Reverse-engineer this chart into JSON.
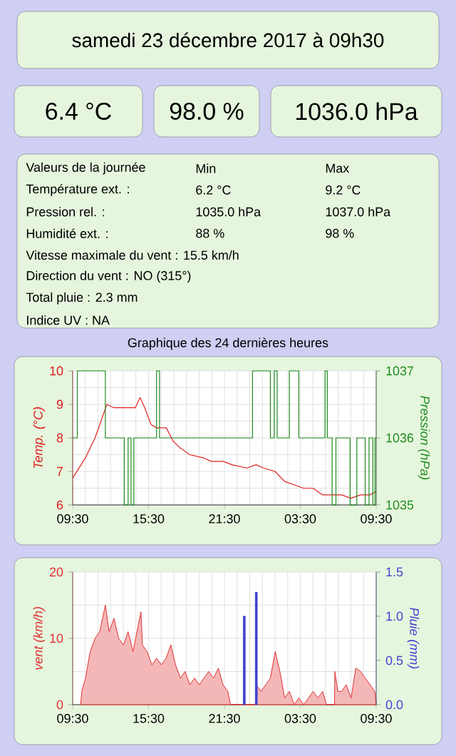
{
  "chart_data": [
    {
      "type": "other",
      "title": "samedi 23 décembre 2017 à 09h30",
      "annotations": [
        "6.4 °C",
        "98.0 %",
        "1036.0 hPa",
        "Valeurs de la journée",
        "Min",
        "Max",
        "Température ext. :",
        "6.2 °C",
        "9.2 °C",
        "Pression rel. :",
        "1035.0 hPa",
        "1037.0 hPa",
        "Humidité ext. :",
        "88 %",
        "98 %",
        "Vitesse maximale du vent : 15.5 km/h",
        "Direction du vent : NO (315°)",
        "Total pluie : 2.3 mm",
        "Indice UV : NA"
      ]
    },
    {
      "type": "line",
      "title": "Graphique des 24 dernières heures",
      "ylabel": "Temp. (°C)",
      "y2label": "Pression (hPa)",
      "grid": true,
      "xlim": [
        "2017-12-22T09:30",
        "2017-12-23T09:30"
      ],
      "xticks": [
        {
          "value": "2017-12-22T09:30",
          "label": "09:30"
        },
        {
          "value": "2017-12-22T15:30",
          "label": "15:30"
        },
        {
          "value": "2017-12-22T21:30",
          "label": "21:30"
        },
        {
          "value": "2017-12-23T03:30",
          "label": "03:30"
        },
        {
          "value": "2017-12-23T09:30",
          "label": "09:30"
        }
      ],
      "ylim": [
        6,
        10
      ],
      "yticks": [
        6,
        7,
        8,
        9,
        10
      ],
      "y2lim": [
        1035,
        1037
      ],
      "y2ticks": [
        1035,
        1036,
        1037
      ],
      "series": [
        {
          "type": "line",
          "color": "#e02020",
          "x": [
            "2017-12-22T09:30",
            "2017-12-22T10:30",
            "2017-12-22T11:16",
            "2017-12-22T11:50",
            "2017-12-22T12:12",
            "2017-12-22T12:46",
            "2017-12-22T13:18",
            "2017-12-22T13:54",
            "2017-12-22T14:27",
            "2017-12-22T14:50",
            "2017-12-22T15:12",
            "2017-12-22T15:42",
            "2017-12-22T16:08",
            "2017-12-22T16:54",
            "2017-12-22T17:27",
            "2017-12-22T18:00",
            "2017-12-22T18:46",
            "2017-12-22T19:53",
            "2017-12-22T20:27",
            "2017-12-22T21:24",
            "2017-12-22T22:06",
            "2017-12-22T23:16",
            "2017-12-23T00:00",
            "2017-12-23T00:36",
            "2017-12-23T01:30",
            "2017-12-23T02:16",
            "2017-12-23T03:00",
            "2017-12-23T03:45",
            "2017-12-23T04:30",
            "2017-12-23T05:16",
            "2017-12-23T06:00",
            "2017-12-23T06:46",
            "2017-12-23T07:30",
            "2017-12-23T08:16",
            "2017-12-23T09:00",
            "2017-12-23T09:30"
          ],
          "values": [
            6.8,
            7.4,
            8.0,
            8.6,
            9.0,
            8.9,
            8.9,
            8.9,
            8.9,
            9.2,
            8.9,
            8.4,
            8.3,
            8.3,
            7.9,
            7.7,
            7.5,
            7.4,
            7.3,
            7.3,
            7.2,
            7.1,
            7.2,
            7.1,
            7.0,
            6.7,
            6.6,
            6.5,
            6.5,
            6.3,
            6.3,
            6.3,
            6.2,
            6.3,
            6.3,
            6.4
          ]
        },
        {
          "type": "step",
          "axis": "y2",
          "color": "#1e8c1e",
          "x": [
            "2017-12-22T09:30",
            "2017-12-22T09:52",
            "2017-12-22T12:05",
            "2017-12-22T13:35",
            "2017-12-22T13:53",
            "2017-12-22T14:07",
            "2017-12-22T14:20",
            "2017-12-22T16:08",
            "2017-12-22T16:22",
            "2017-12-22T23:43",
            "2017-12-23T01:08",
            "2017-12-23T01:26",
            "2017-12-23T01:40",
            "2017-12-23T02:38",
            "2017-12-23T03:23",
            "2017-12-23T05:27",
            "2017-12-23T05:38",
            "2017-12-23T06:01",
            "2017-12-23T06:19",
            "2017-12-23T07:26",
            "2017-12-23T07:58",
            "2017-12-23T08:38",
            "2017-12-23T08:56",
            "2017-12-23T09:14",
            "2017-12-23T09:24",
            "2017-12-23T09:30"
          ],
          "values": [
            1036,
            1037,
            1036,
            1035,
            1036,
            1035,
            1036,
            1037,
            1036,
            1037,
            1036,
            1037,
            1036,
            1037,
            1036,
            1037,
            1036,
            1035,
            1036,
            1035,
            1036,
            1035,
            1036,
            1035,
            1036,
            1036
          ]
        }
      ]
    },
    {
      "type": "area",
      "ylabel": "vent (km/h)",
      "y2label": "Pluie (mm)",
      "grid": true,
      "xlim": [
        "2017-12-22T09:30",
        "2017-12-23T09:30"
      ],
      "xticks": [
        {
          "value": "2017-12-22T09:30",
          "label": "09:30"
        },
        {
          "value": "2017-12-22T15:30",
          "label": "15:30"
        },
        {
          "value": "2017-12-22T21:30",
          "label": "21:30"
        },
        {
          "value": "2017-12-23T03:30",
          "label": "03:30"
        },
        {
          "value": "2017-12-23T09:30",
          "label": "09:30"
        }
      ],
      "ylim": [
        0,
        20
      ],
      "yticks": [
        0,
        10,
        20
      ],
      "y2lim": [
        0,
        1.5
      ],
      "y2ticks": [
        {
          "value": 0,
          "label": "0.0"
        },
        {
          "value": 0.5,
          "label": "0.5"
        },
        {
          "value": 1,
          "label": "1.0"
        },
        {
          "value": 1.5,
          "label": "1.5"
        }
      ],
      "series": [
        {
          "type": "area",
          "color": "#e03030",
          "x": [
            "2017-12-22T10:08",
            "2017-12-22T10:13",
            "2017-12-22T10:31",
            "2017-12-22T10:53",
            "2017-12-22T11:16",
            "2017-12-22T11:38",
            "2017-12-22T12:05",
            "2017-12-22T12:23",
            "2017-12-22T12:46",
            "2017-12-22T13:08",
            "2017-12-22T13:31",
            "2017-12-22T13:53",
            "2017-12-22T14:16",
            "2017-12-22T14:54",
            "2017-12-22T15:01",
            "2017-12-22T15:23",
            "2017-12-22T15:46",
            "2017-12-22T16:08",
            "2017-12-22T16:31",
            "2017-12-22T16:53",
            "2017-12-22T17:16",
            "2017-12-22T17:38",
            "2017-12-22T18:01",
            "2017-12-22T18:23",
            "2017-12-22T18:46",
            "2017-12-22T19:08",
            "2017-12-22T19:31",
            "2017-12-22T19:53",
            "2017-12-22T20:16",
            "2017-12-22T20:38",
            "2017-12-22T21:01",
            "2017-12-22T21:23",
            "2017-12-22T21:46",
            "2017-12-22T21:59",
            "2017-12-22T23:59",
            "2017-12-23T00:01",
            "2017-12-23T00:23",
            "2017-12-23T00:46",
            "2017-12-23T01:08",
            "2017-12-23T01:31",
            "2017-12-23T01:53",
            "2017-12-23T02:16",
            "2017-12-23T02:38",
            "2017-12-23T03:01",
            "2017-12-23T03:23",
            "2017-12-23T03:46",
            "2017-12-23T04:31",
            "2017-12-23T04:53",
            "2017-12-23T05:16",
            "2017-12-23T05:34",
            "2017-12-23T06:12",
            "2017-12-23T06:14",
            "2017-12-23T06:28",
            "2017-12-23T06:46",
            "2017-12-23T07:08",
            "2017-12-23T07:31",
            "2017-12-23T07:53",
            "2017-12-23T08:16",
            "2017-12-23T08:38",
            "2017-12-23T09:01",
            "2017-12-23T09:23",
            "2017-12-23T09:30"
          ],
          "values": [
            0,
            2,
            4,
            8,
            10,
            11,
            15,
            11,
            13,
            10,
            9,
            11,
            8,
            14,
            9,
            8,
            6,
            7,
            6,
            7,
            9,
            6,
            4,
            5,
            3,
            4,
            3,
            4,
            5,
            4,
            5.5,
            3,
            2,
            0,
            0,
            3,
            2,
            3,
            4,
            8,
            5,
            1,
            2,
            0,
            1,
            0,
            2,
            1,
            2,
            0,
            0,
            5,
            2,
            2,
            3,
            1,
            5.5,
            5,
            4,
            3,
            2,
            0
          ]
        },
        {
          "type": "bar",
          "axis": "y2",
          "color": "#4040d0",
          "x": [
            "2017-12-22T23:04",
            "2017-12-23T00:01"
          ],
          "values": [
            1.0,
            1.27
          ]
        }
      ]
    }
  ]
}
